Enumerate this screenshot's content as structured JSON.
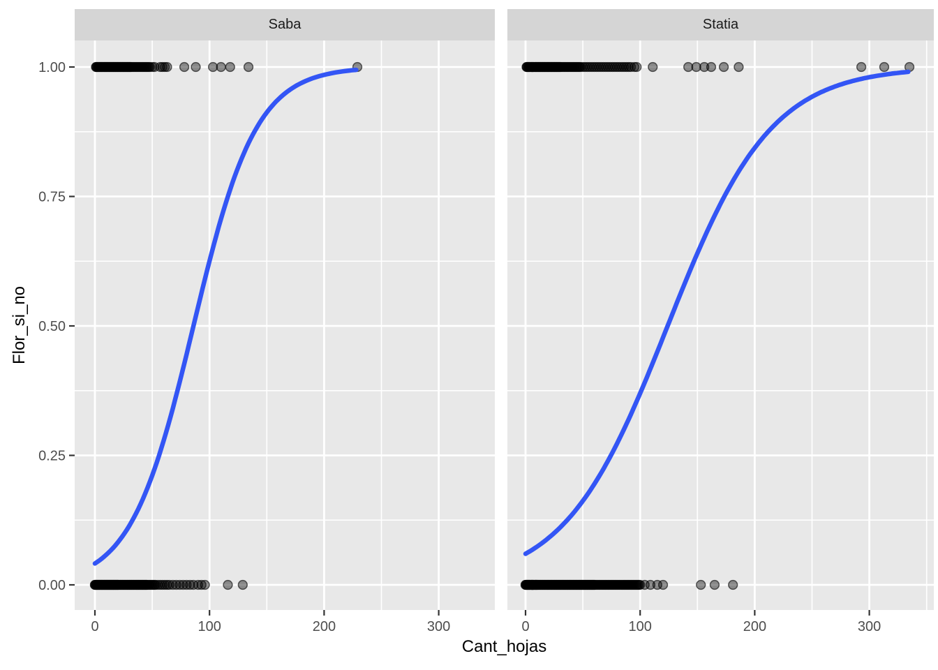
{
  "chart_data": {
    "type": "scatter",
    "title": "",
    "xlabel": "Cant_hojas",
    "ylabel": "Flor_si_no",
    "facet_labels": [
      "Saba",
      "Statia"
    ],
    "x_ticks": [
      0,
      100,
      200,
      300
    ],
    "x_minor": [
      50,
      150,
      250,
      350
    ],
    "y_ticks": [
      {
        "value": 0.0,
        "label": "0.00"
      },
      {
        "value": 0.25,
        "label": "0.25"
      },
      {
        "value": 0.5,
        "label": "0.50"
      },
      {
        "value": 0.75,
        "label": "0.75"
      },
      {
        "value": 1.0,
        "label": "1.00"
      }
    ],
    "y_minor": [
      0.125,
      0.375,
      0.625,
      0.875
    ],
    "xlim": [
      -17.7,
      349
    ],
    "ylim": [
      -0.05,
      1.05
    ],
    "grid": true,
    "legend_position": "none",
    "panels": [
      {
        "label": "Saba",
        "curve": {
          "type": "logistic",
          "k": 0.0366,
          "x0": 86,
          "x_start": 0,
          "x_end": 229
        },
        "points_y1": [
          1,
          1,
          2,
          2,
          3,
          3,
          4,
          4,
          5,
          5,
          6,
          6,
          7,
          7,
          8,
          8,
          9,
          9,
          10,
          10,
          11,
          11,
          12,
          12,
          13,
          13,
          14,
          14,
          15,
          15,
          16,
          16,
          17,
          17,
          18,
          18,
          19,
          19,
          20,
          20,
          21,
          21,
          22,
          22,
          23,
          23,
          24,
          24,
          25,
          25,
          26,
          26,
          27,
          27,
          28,
          28,
          29,
          29,
          30,
          30,
          31,
          31,
          32,
          33,
          34,
          35,
          36,
          37,
          38,
          39,
          40,
          41,
          42,
          43,
          44,
          45,
          46,
          47,
          48,
          50,
          52,
          57,
          59,
          61,
          63,
          78,
          88,
          103,
          110,
          118,
          134,
          229
        ],
        "points_y0": [
          0,
          0,
          1,
          1,
          1,
          2,
          2,
          2,
          3,
          3,
          3,
          4,
          4,
          4,
          5,
          5,
          5,
          6,
          6,
          6,
          7,
          7,
          7,
          8,
          8,
          8,
          9,
          9,
          9,
          10,
          10,
          10,
          11,
          11,
          11,
          12,
          12,
          12,
          13,
          13,
          13,
          14,
          14,
          14,
          15,
          15,
          15,
          16,
          16,
          16,
          17,
          17,
          17,
          18,
          18,
          18,
          19,
          19,
          19,
          20,
          20,
          20,
          21,
          21,
          22,
          22,
          23,
          23,
          24,
          24,
          25,
          25,
          26,
          26,
          27,
          27,
          28,
          28,
          29,
          29,
          30,
          30,
          31,
          31,
          32,
          32,
          33,
          33,
          34,
          34,
          35,
          35,
          36,
          36,
          37,
          37,
          38,
          38,
          39,
          39,
          40,
          40,
          41,
          41,
          42,
          42,
          43,
          43,
          44,
          44,
          45,
          45,
          46,
          47,
          48,
          49,
          50,
          51,
          52,
          53,
          55,
          57,
          59,
          61,
          63,
          65,
          68,
          71,
          74,
          77,
          80,
          83,
          86,
          90,
          93,
          96,
          116,
          129
        ]
      },
      {
        "label": "Statia",
        "curve": {
          "type": "logistic",
          "k": 0.0222,
          "x0": 124,
          "x_start": 0,
          "x_end": 335
        },
        "points_y1": [
          1,
          1,
          2,
          2,
          3,
          3,
          4,
          4,
          5,
          5,
          6,
          6,
          7,
          7,
          8,
          8,
          9,
          9,
          10,
          10,
          11,
          11,
          12,
          12,
          13,
          13,
          14,
          14,
          15,
          15,
          16,
          16,
          17,
          17,
          18,
          18,
          19,
          19,
          20,
          20,
          21,
          21,
          22,
          22,
          23,
          23,
          24,
          24,
          25,
          25,
          26,
          26,
          27,
          27,
          28,
          28,
          29,
          29,
          30,
          30,
          31,
          32,
          33,
          34,
          35,
          36,
          37,
          38,
          39,
          40,
          41,
          42,
          43,
          44,
          45,
          46,
          47,
          48,
          50,
          52,
          54,
          56,
          58,
          60,
          62,
          64,
          66,
          68,
          70,
          72,
          74,
          76,
          78,
          80,
          82,
          84,
          86,
          88,
          90,
          92,
          95,
          97,
          111,
          142,
          149,
          156,
          162,
          173,
          186,
          293,
          313,
          335
        ],
        "points_y0": [
          0,
          0,
          1,
          1,
          1,
          2,
          2,
          2,
          3,
          3,
          3,
          4,
          4,
          4,
          5,
          5,
          5,
          6,
          6,
          6,
          7,
          7,
          7,
          8,
          8,
          8,
          9,
          9,
          9,
          10,
          10,
          10,
          11,
          11,
          12,
          12,
          13,
          13,
          14,
          14,
          15,
          15,
          16,
          16,
          17,
          17,
          18,
          18,
          19,
          19,
          20,
          20,
          21,
          21,
          22,
          22,
          23,
          23,
          24,
          24,
          25,
          25,
          26,
          26,
          27,
          27,
          28,
          28,
          29,
          29,
          30,
          30,
          31,
          31,
          32,
          32,
          33,
          33,
          34,
          34,
          35,
          35,
          36,
          36,
          37,
          37,
          38,
          38,
          39,
          39,
          40,
          40,
          41,
          41,
          42,
          42,
          43,
          43,
          44,
          44,
          45,
          45,
          46,
          46,
          47,
          47,
          48,
          48,
          49,
          49,
          50,
          50,
          51,
          51,
          52,
          52,
          53,
          53,
          54,
          54,
          55,
          55,
          56,
          56,
          57,
          57,
          58,
          58,
          59,
          59,
          60,
          60,
          61,
          62,
          63,
          64,
          65,
          66,
          67,
          68,
          69,
          70,
          71,
          72,
          73,
          74,
          75,
          76,
          77,
          78,
          79,
          80,
          81,
          82,
          83,
          84,
          85,
          86,
          87,
          88,
          89,
          90,
          91,
          92,
          93,
          94,
          95,
          96,
          97,
          98,
          99,
          100,
          104,
          109,
          115,
          120,
          153,
          165,
          181
        ]
      }
    ],
    "colors": {
      "curve": "#3355f5",
      "panel_bg": "#e8e8e8",
      "strip_bg": "#d5d5d5",
      "grid": "#ffffff",
      "tick_text": "#4d4d4d",
      "title_text": "#000000",
      "point": "#000000",
      "tick_mark": "#333333"
    }
  }
}
